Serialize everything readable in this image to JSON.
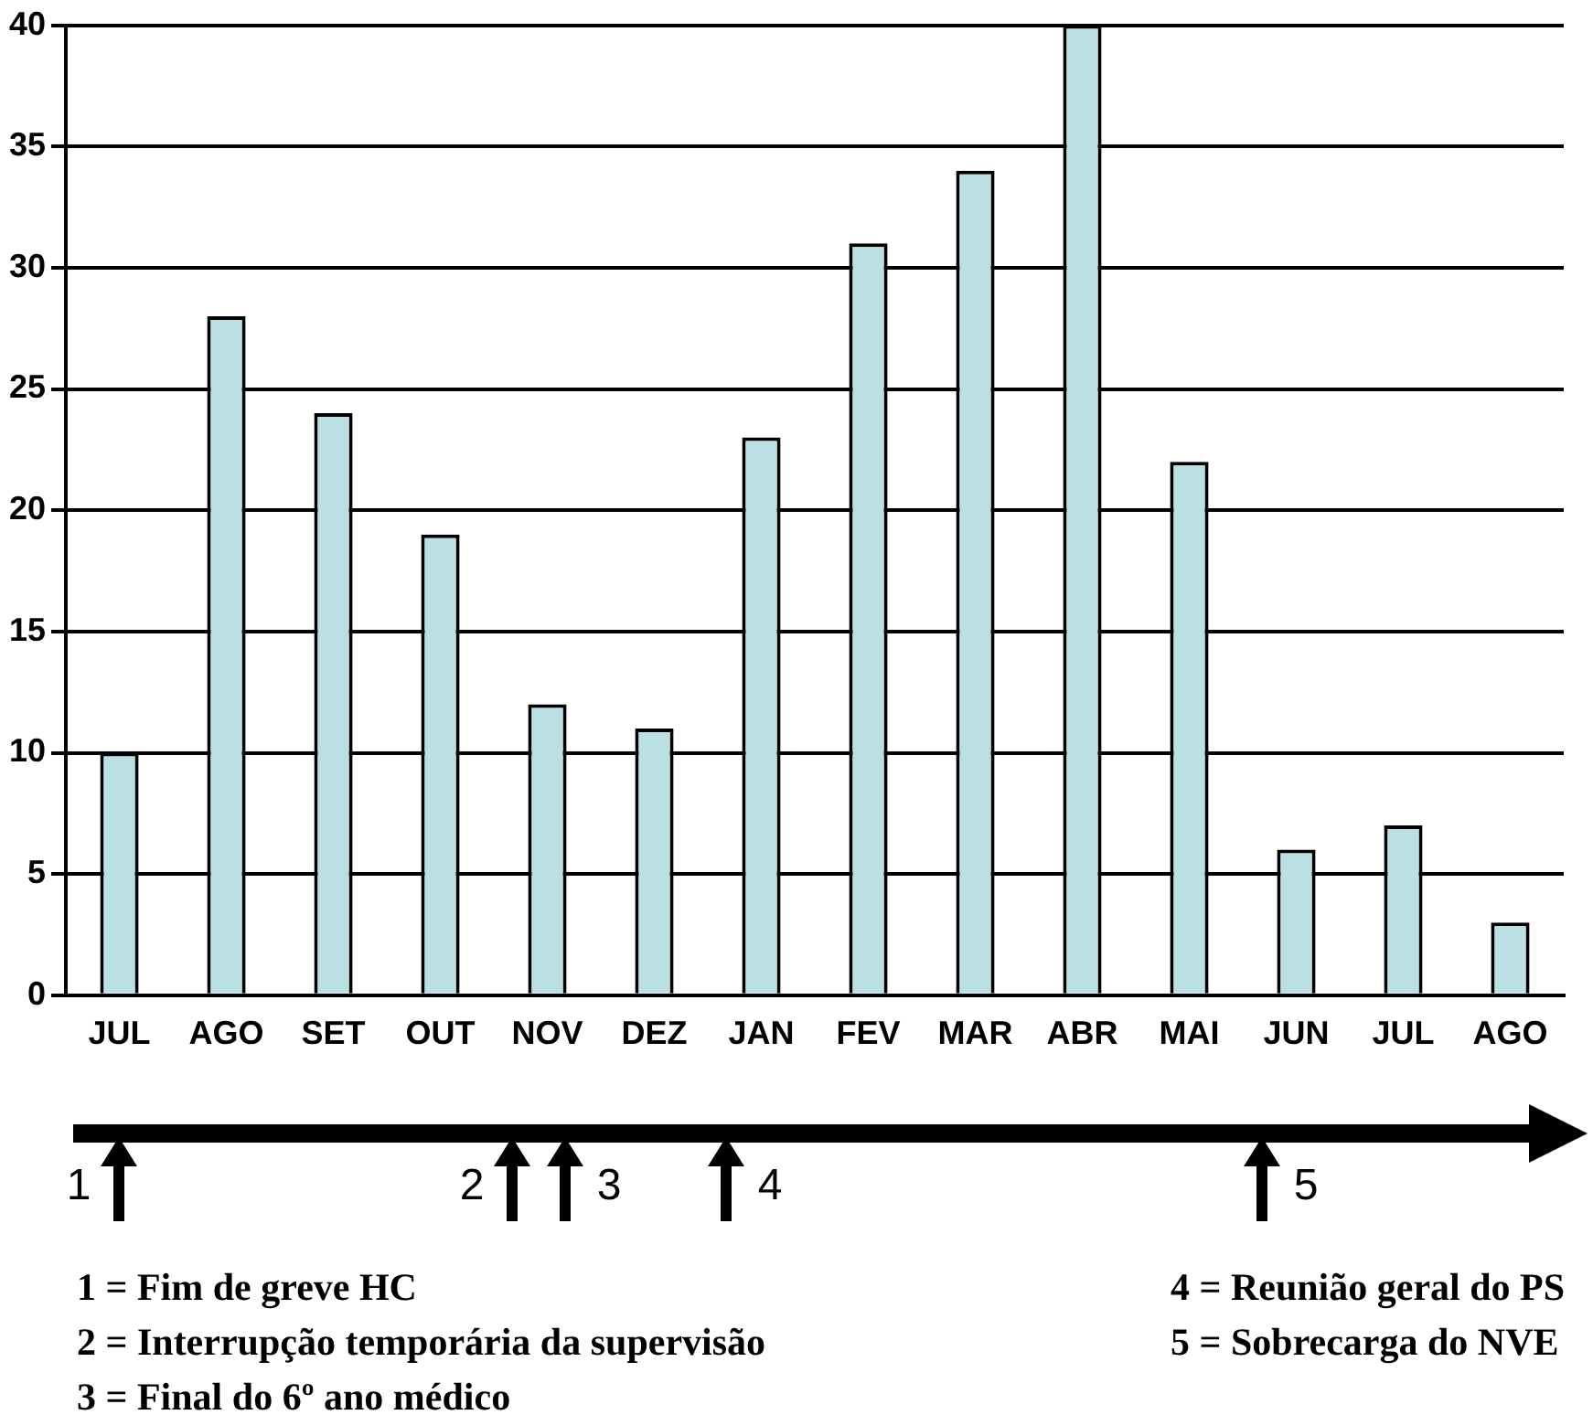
{
  "chart_data": {
    "type": "bar",
    "categories": [
      "JUL",
      "AGO",
      "SET",
      "OUT",
      "NOV",
      "DEZ",
      "JAN",
      "FEV",
      "MAR",
      "ABR",
      "MAI",
      "JUN",
      "JUL",
      "AGO"
    ],
    "values": [
      10,
      28,
      24,
      19,
      12,
      11,
      23,
      31,
      34,
      40,
      22,
      6,
      7,
      3
    ],
    "color": "#bbe0e3",
    "ylim": [
      0,
      40
    ],
    "yticks": [
      0,
      5,
      10,
      15,
      20,
      25,
      30,
      35,
      40
    ],
    "grid": "y",
    "annotations": [
      "1",
      "2",
      "3",
      "4",
      "5",
      "1 = Fim de greve HC",
      "2 = Interrupção temporária da supervisão",
      "3 = Final do 6º ano médico",
      "4 = Reunião geral do PS",
      "5 = Sobrecarga do NVE"
    ]
  }
}
